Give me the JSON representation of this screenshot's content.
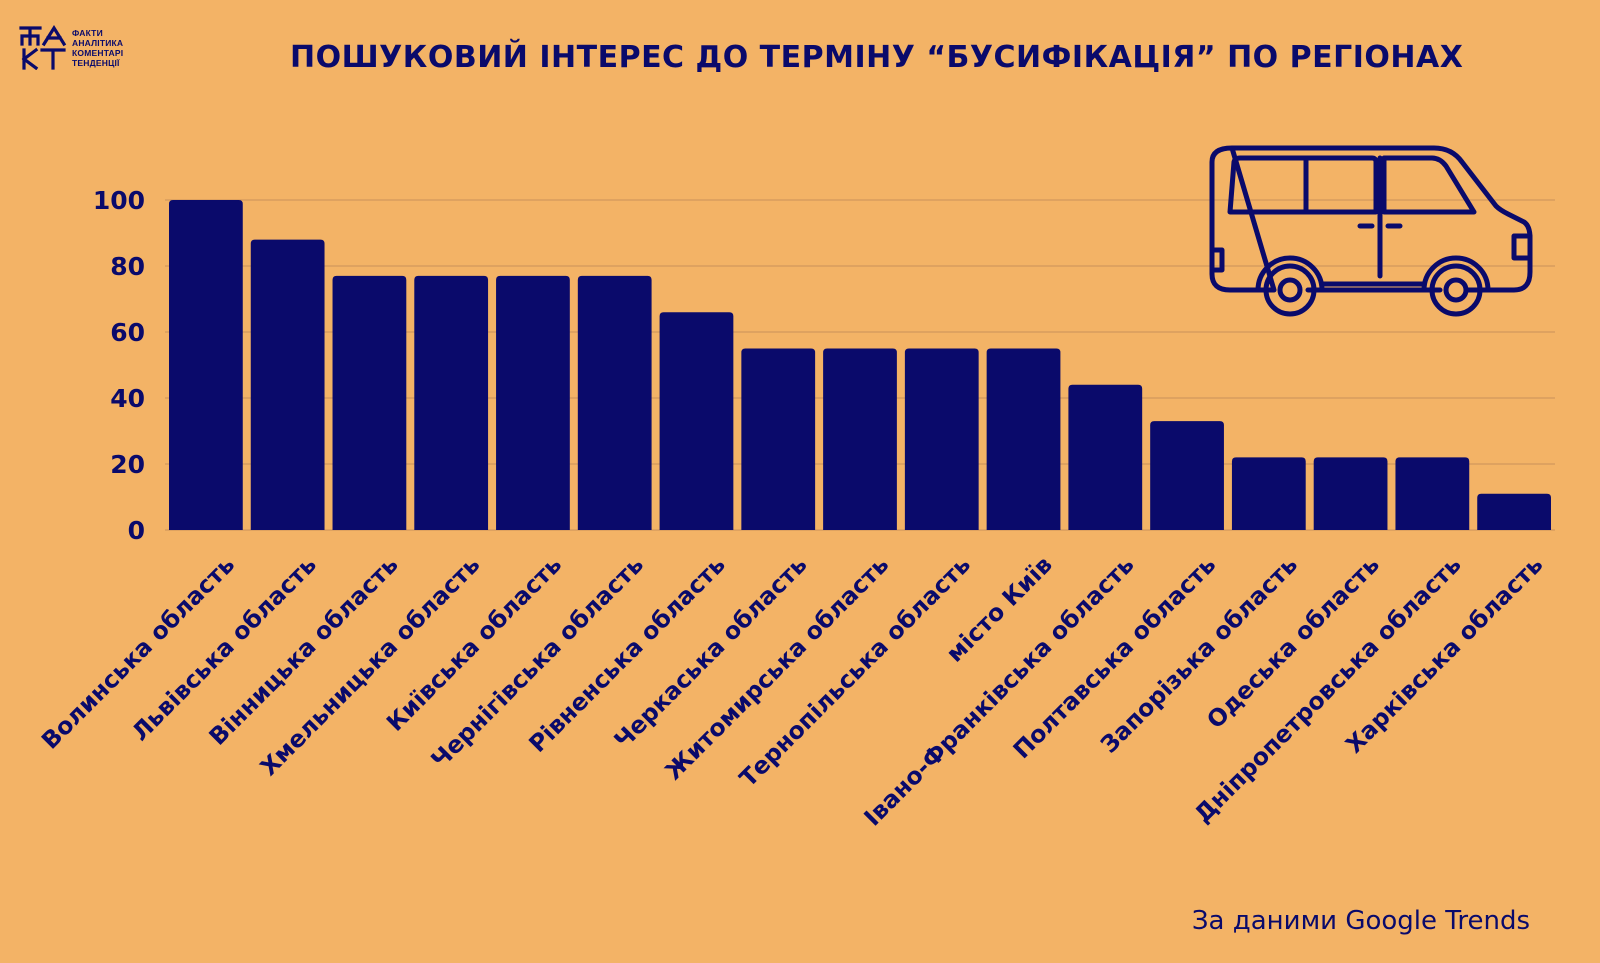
{
  "logo": {
    "mark": "ФАКТ",
    "lines": [
      "ФАКТИ",
      "АНАЛІТИКА",
      "КОМЕНТАРІ",
      "ТЕНДЕНЦІЇ"
    ]
  },
  "title": "ПОШУКОВИЙ ІНТЕРЕС ДО ТЕРМІНУ “БУСИФІКАЦІЯ” ПО РЕГІОНАХ",
  "source": "За даними Google Trends",
  "illustration": "van-icon",
  "colors": {
    "background": "#F3B366",
    "bar": "#0A0A6B",
    "text": "#0A0A6B",
    "grid": "#C9915A"
  },
  "chart_data": {
    "type": "bar",
    "categories": [
      "Волинська область",
      "Львівська область",
      "Вінницька область",
      "Хмельницька область",
      "Київська область",
      "Чернігівська область",
      "Рівненська область",
      "Черкаська область",
      "Житомирська область",
      "Тернопільська область",
      "місто Київ",
      "Івано-Франківська область",
      "Полтавська область",
      "Запорізька область",
      "Одеська область",
      "Дніпропетровська область",
      "Харківська область"
    ],
    "values": [
      100,
      88,
      77,
      77,
      77,
      77,
      66,
      55,
      55,
      55,
      55,
      44,
      33,
      22,
      22,
      22,
      11
    ],
    "ylim": [
      0,
      100
    ],
    "yticks": [
      "0",
      "20",
      "40",
      "60",
      "80",
      "100"
    ],
    "grid": true,
    "title": "",
    "xlabel": "",
    "ylabel": ""
  }
}
